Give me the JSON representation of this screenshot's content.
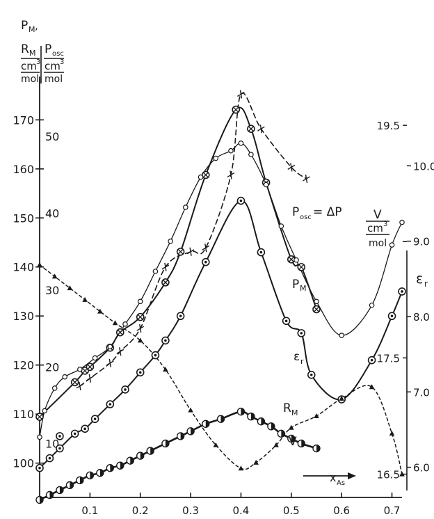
{
  "chart_data": {
    "type": "line",
    "left_axis_pm_rm": {
      "label_lines": [
        "P",
        "M",
        ",",
        "R",
        "M",
        "cm",
        "3",
        "mol"
      ],
      "ticks": [
        100,
        110,
        120,
        130,
        140,
        150,
        160,
        170
      ],
      "range": [
        93,
        176
      ]
    },
    "left_axis_posc": {
      "label_lines": [
        "P",
        "osc",
        "cm",
        "3",
        "mol"
      ],
      "ticks": [
        10,
        20,
        30,
        40,
        50
      ],
      "range": [
        3,
        56
      ]
    },
    "right_axis_v": {
      "label_lines": [
        "V",
        "cm",
        "3",
        "mol"
      ],
      "ticks": [
        16.5,
        17.5,
        18.5,
        19.5
      ],
      "tick_labels": [
        "16.5",
        "17.5",
        "",
        "19.5"
      ],
      "range": [
        16.3,
        19.8
      ]
    },
    "right_axis_er": {
      "label": "ε",
      "sub": "r",
      "ticks": [
        6.0,
        7.0,
        8.0,
        9.0,
        10.0
      ],
      "tick_labels": [
        "6.0",
        "7.0",
        "8.0",
        "9.0",
        "10.0"
      ],
      "range": [
        5.6,
        11.0
      ]
    },
    "x_axis": {
      "label": "x",
      "sub": "As",
      "ticks": [
        0.1,
        0.2,
        0.3,
        0.4,
        0.5,
        0.6,
        0.7
      ],
      "tick_labels": [
        "0.1",
        "0.2",
        "0.3",
        "0.4",
        "0.5",
        "0.6",
        "0.7"
      ],
      "range": [
        0,
        0.72
      ]
    },
    "annotations": {
      "posc_prefix": "P",
      "posc_sub": "osc",
      "posc_suffix": "= ΔP",
      "pm": "P",
      "pm_sub": "M",
      "er": "ε",
      "er_sub": "r",
      "rm": "R",
      "rm_sub": "M",
      "v": "V"
    },
    "series": [
      {
        "name": "PM",
        "axis": "left_pm_rm",
        "marker": "circle-dot",
        "x": [
          0.0,
          0.02,
          0.04,
          0.07,
          0.09,
          0.11,
          0.14,
          0.17,
          0.2,
          0.23,
          0.25,
          0.28,
          0.33,
          0.4,
          0.44,
          0.49,
          0.52,
          0.54,
          0.6,
          0.66,
          0.7,
          0.72
        ],
        "y": [
          99,
          101,
          103,
          106,
          107,
          109,
          112,
          115,
          118.5,
          122,
          125,
          130,
          141,
          153.5,
          143,
          129,
          126.5,
          118,
          113,
          121,
          130,
          135
        ]
      },
      {
        "name": "RM",
        "axis": "left_pm_rm",
        "marker": "half-filled",
        "x": [
          0.0,
          0.02,
          0.04,
          0.06,
          0.08,
          0.1,
          0.12,
          0.14,
          0.16,
          0.18,
          0.2,
          0.22,
          0.25,
          0.28,
          0.3,
          0.33,
          0.36,
          0.4,
          0.42,
          0.44,
          0.46,
          0.48,
          0.5,
          0.52,
          0.55
        ],
        "y": [
          92.5,
          93.5,
          94.5,
          95.5,
          96.5,
          97.5,
          98,
          99,
          99.5,
          100.5,
          101.5,
          102.5,
          104,
          105.5,
          106.5,
          108,
          109,
          110.5,
          109.5,
          108.5,
          107.5,
          106,
          105,
          104,
          103
        ]
      },
      {
        "name": "Posc",
        "axis": "left_posc",
        "marker": "circle-cross",
        "x": [
          0.0,
          0.07,
          0.09,
          0.1,
          0.14,
          0.16,
          0.2,
          0.25,
          0.28,
          0.33,
          0.39,
          0.42,
          0.45,
          0.5,
          0.52,
          0.55
        ],
        "y": [
          13.5,
          18,
          19.5,
          20,
          22.5,
          24.5,
          26.5,
          31,
          35,
          45,
          53.5,
          51,
          44,
          34,
          33,
          27.5
        ]
      },
      {
        "name": "Posc dashed",
        "axis": "left_posc",
        "marker": "cross",
        "x": [
          0.08,
          0.1,
          0.14,
          0.16,
          0.2,
          0.25,
          0.3,
          0.33,
          0.38,
          0.4,
          0.44,
          0.5,
          0.53
        ],
        "y": [
          17.5,
          18.5,
          20.5,
          22,
          25,
          33,
          35,
          35.5,
          45,
          55.5,
          51,
          46,
          44.5
        ]
      },
      {
        "name": "er",
        "axis": "right_er",
        "marker": "open-circle",
        "x": [
          0.0,
          0.01,
          0.03,
          0.05,
          0.08,
          0.11,
          0.14,
          0.17,
          0.2,
          0.23,
          0.26,
          0.29,
          0.32,
          0.35,
          0.38,
          0.4,
          0.42,
          0.45,
          0.48,
          0.51,
          0.55,
          0.6,
          0.66,
          0.7,
          0.72
        ],
        "y": [
          6.4,
          6.75,
          7.05,
          7.2,
          7.3,
          7.45,
          7.6,
          7.9,
          8.2,
          8.6,
          9.0,
          9.45,
          9.85,
          10.1,
          10.2,
          10.3,
          10.15,
          9.75,
          9.2,
          8.75,
          8.2,
          7.75,
          8.15,
          8.95,
          9.25
        ]
      },
      {
        "name": "V",
        "axis": "right_v",
        "marker": "triangle",
        "x": [
          0.0,
          0.03,
          0.06,
          0.09,
          0.12,
          0.15,
          0.2,
          0.25,
          0.3,
          0.35,
          0.4,
          0.43,
          0.47,
          0.5,
          0.55,
          0.6,
          0.66,
          0.7,
          0.72
        ],
        "y": [
          18.3,
          18.2,
          18.1,
          18.0,
          17.9,
          17.8,
          17.65,
          17.4,
          17.05,
          16.75,
          16.55,
          16.6,
          16.75,
          16.9,
          17.0,
          17.15,
          17.25,
          16.85,
          16.5
        ]
      }
    ],
    "isolated_points": [
      {
        "axis": "left_pm_rm",
        "x": 0.04,
        "y": 105.5,
        "marker": "circle-dot"
      }
    ]
  }
}
